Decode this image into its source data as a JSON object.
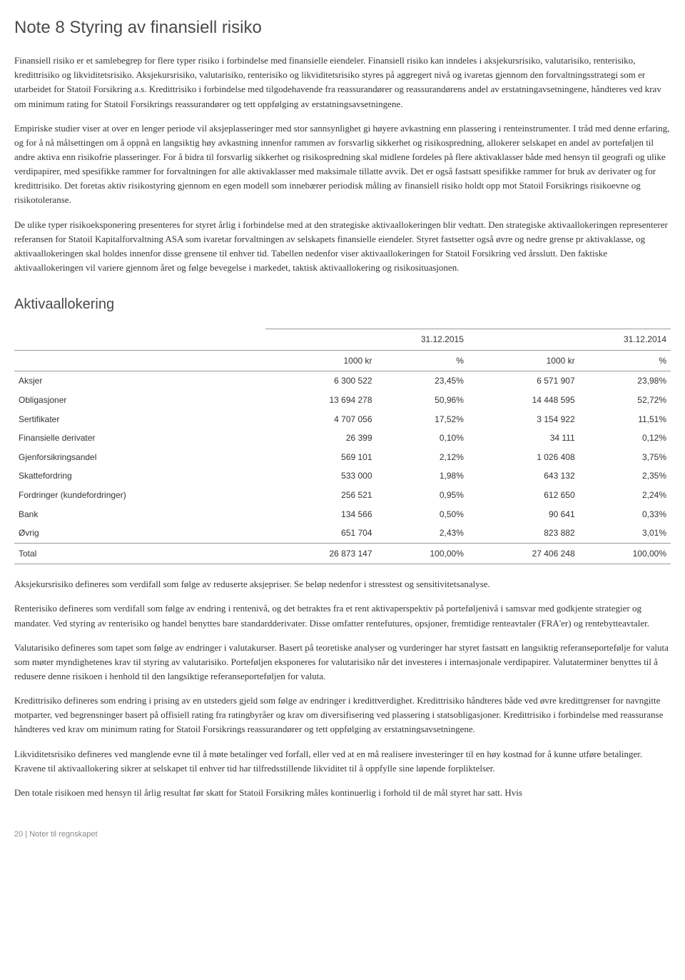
{
  "title": "Note 8 Styring av finansiell risiko",
  "paragraphs": {
    "p1": "Finansiell risiko er et samlebegrep for flere typer risiko i forbindelse med finansielle eiendeler. Finansiell risiko kan inndeles i aksjekursrisiko, valutarisiko, renterisiko, kredittrisiko og likviditetsrisiko. Aksjekursrisiko, valutarisiko, renterisiko og likviditetsrisiko styres på aggregert nivå og ivaretas gjennom den forvaltningsstrategi som er utarbeidet for Statoil Forsikring a.s. Kredittrisiko i forbindelse med tilgodehavende fra reassurandører og reassurandørens andel av erstatningavsetningene, håndteres ved krav om minimum rating for Statoil Forsikrings reassurandører og tett oppfølging av erstatningsavsetningene.",
    "p2": "Empiriske studier viser at over en lenger periode vil aksjeplasseringer med stor sannsynlighet gi høyere avkastning enn plassering i renteinstrumenter. I tråd med denne erfaring, og for å nå målsettingen om å oppnå en langsiktig høy avkastning innenfor rammen av forsvarlig sikkerhet og risikospredning, allokerer selskapet en andel av porteføljen til andre aktiva enn risikofrie plasseringer. For å bidra til forsvarlig sikkerhet og risikospredning skal midlene fordeles på flere aktivaklasser både med hensyn til geografi og ulike verdipapirer, med spesifikke rammer for forvaltningen for alle aktivaklasser med maksimale tillatte avvik. Det er også fastsatt spesifikke rammer for bruk av derivater og for kredittrisiko. Det foretas aktiv risikostyring gjennom en egen modell som innebærer periodisk måling av finansiell risiko holdt opp mot Statoil Forsikrings risikoevne og risikotoleranse.",
    "p3": "De ulike typer risikoeksponering presenteres for styret årlig i forbindelse med at den strategiske aktivaallokeringen blir vedtatt. Den strategiske aktivaallokeringen representerer referansen for Statoil Kapitalforvaltning ASA som ivaretar forvaltningen av selskapets finansielle eiendeler. Styret fastsetter også øvre og nedre grense pr aktivaklasse, og aktivaallokeringen skal holdes innenfor disse grensene til enhver tid. Tabellen nedenfor viser aktivaallokeringen for Statoil Forsikring ved årsslutt. Den faktiske aktivaallokeringen vil variere gjennom året og følge bevegelse i markedet, taktisk aktivaallokering og risikosituasjonen.",
    "p4": "Aksjekursrisiko defineres som verdifall som følge av reduserte aksjepriser. Se beløp nedenfor i stresstest og sensitivitetsanalyse.",
    "p5": "Renterisiko defineres som verdifall som følge av endring i rentenivå, og det betraktes fra et rent aktivaperspektiv på porteføljenivå i samsvar med godkjente strategier og mandater. Ved styring av renterisiko og handel benyttes bare standardderivater. Disse omfatter rentefutures, opsjoner, fremtidige renteavtaler (FRA'er) og rentebytteavtaler.",
    "p6": "Valutarisiko defineres som tapet som følge av endringer i valutakurser. Basert på teoretiske analyser og vurderinger har styret fastsatt en langsiktig referanseportefølje for valuta som møter myndighetenes krav til styring av valutarisiko. Porteføljen eksponeres for valutarisiko når det investeres i internasjonale verdipapirer. Valutaterminer benyttes til å redusere denne risikoen i henhold til den langsiktige referanseporteføljen for valuta.",
    "p7": "Kredittrisiko defineres som endring i prising av en utsteders gjeld som følge av endringer i kredittverdighet. Kredittrisiko håndteres både ved øvre kredittgrenser for navngitte motparter, ved begrensninger basert på offisiell rating fra ratingbyråer og krav om diversifisering ved plassering i statsobligasjoner. Kredittrisiko i forbindelse med reassuranse håndteres ved krav om minimum rating for Statoil Forsikrings reassurandører og tett oppfølging av erstatningsavsetningene.",
    "p8": "Likviditetsrisiko defineres ved manglende evne til å møte betalinger ved forfall, eller ved at en må realisere investeringer til en høy kostnad for å kunne utføre betalinger. Kravene til aktivaallokering sikrer at selskapet til enhver tid har tilfredsstillende likviditet til å oppfylle sine løpende forpliktelser.",
    "p9": "Den totale risikoen med hensyn til årlig resultat før skatt for Statoil Forsikring måles kontinuerlig i forhold til de mål styret har satt. Hvis"
  },
  "table": {
    "title": "Aktivaallokering",
    "type": "table",
    "period1": "31.12.2015",
    "period2": "31.12.2014",
    "headers": [
      "",
      "1000 kr",
      "%",
      "1000 kr",
      "%"
    ],
    "rows": [
      {
        "label": "Aksjer",
        "v1": "6 300 522",
        "p1": "23,45%",
        "v2": "6 571 907",
        "p2": "23,98%"
      },
      {
        "label": "Obligasjoner",
        "v1": "13 694 278",
        "p1": "50,96%",
        "v2": "14 448 595",
        "p2": "52,72%"
      },
      {
        "label": "Sertifikater",
        "v1": "4 707 056",
        "p1": "17,52%",
        "v2": "3 154 922",
        "p2": "11,51%"
      },
      {
        "label": "Finansielle derivater",
        "v1": "26 399",
        "p1": "0,10%",
        "v2": "34 111",
        "p2": "0,12%"
      },
      {
        "label": "Gjenforsikringsandel",
        "v1": "569 101",
        "p1": "2,12%",
        "v2": "1 026 408",
        "p2": "3,75%"
      },
      {
        "label": "Skattefordring",
        "v1": "533 000",
        "p1": "1,98%",
        "v2": "643 132",
        "p2": "2,35%"
      },
      {
        "label": "Fordringer (kundefordringer)",
        "v1": "256 521",
        "p1": "0,95%",
        "v2": "612 650",
        "p2": "2,24%"
      },
      {
        "label": "Bank",
        "v1": "134 566",
        "p1": "0,50%",
        "v2": "90 641",
        "p2": "0,33%"
      },
      {
        "label": "Øvrig",
        "v1": "651 704",
        "p1": "2,43%",
        "v2": "823 882",
        "p2": "3,01%"
      }
    ],
    "total": {
      "label": "Total",
      "v1": "26 873 147",
      "p1": "100,00%",
      "v2": "27 406 248",
      "p2": "100,00%"
    },
    "col_widths": [
      "30%",
      "17.5%",
      "17.5%",
      "17.5%",
      "17.5%"
    ]
  },
  "footer": "20 | Noter til regnskapet",
  "colors": {
    "text": "#333333",
    "heading": "#4a4a4a",
    "border": "#999999",
    "footer": "#888888",
    "background": "#ffffff"
  },
  "typography": {
    "body_fontsize": 13,
    "title_fontsize": 24,
    "subtitle_fontsize": 20,
    "table_fontsize": 12,
    "footer_fontsize": 11
  }
}
